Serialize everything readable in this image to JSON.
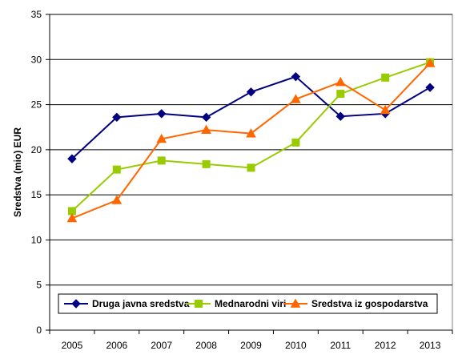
{
  "chart_data": {
    "type": "line",
    "title": "",
    "xlabel": "",
    "ylabel": "Sredstva (mio) EUR",
    "x": [
      "2005",
      "2006",
      "2007",
      "2008",
      "2009",
      "2010",
      "2011",
      "2012",
      "2013"
    ],
    "ylim": [
      0,
      35
    ],
    "yticks": [
      "0",
      "5",
      "10",
      "15",
      "20",
      "25",
      "30",
      "35"
    ],
    "grid": true,
    "legend_position": "bottom-inside",
    "series": [
      {
        "name": "Druga javna sredstva",
        "color": "#000080",
        "marker": "diamond",
        "values": [
          19.0,
          23.6,
          24.0,
          23.6,
          26.4,
          28.1,
          23.7,
          24.0,
          26.9
        ]
      },
      {
        "name": "Mednarodni viri",
        "color": "#99CC00",
        "marker": "square",
        "values": [
          13.2,
          17.8,
          18.8,
          18.4,
          18.0,
          20.8,
          26.2,
          28.0,
          29.7
        ]
      },
      {
        "name": "Sredstva iz gospodarstva",
        "color": "#FF6600",
        "marker": "triangle",
        "values": [
          12.4,
          14.4,
          21.2,
          22.2,
          21.8,
          25.6,
          27.5,
          24.4,
          29.6
        ]
      }
    ]
  }
}
